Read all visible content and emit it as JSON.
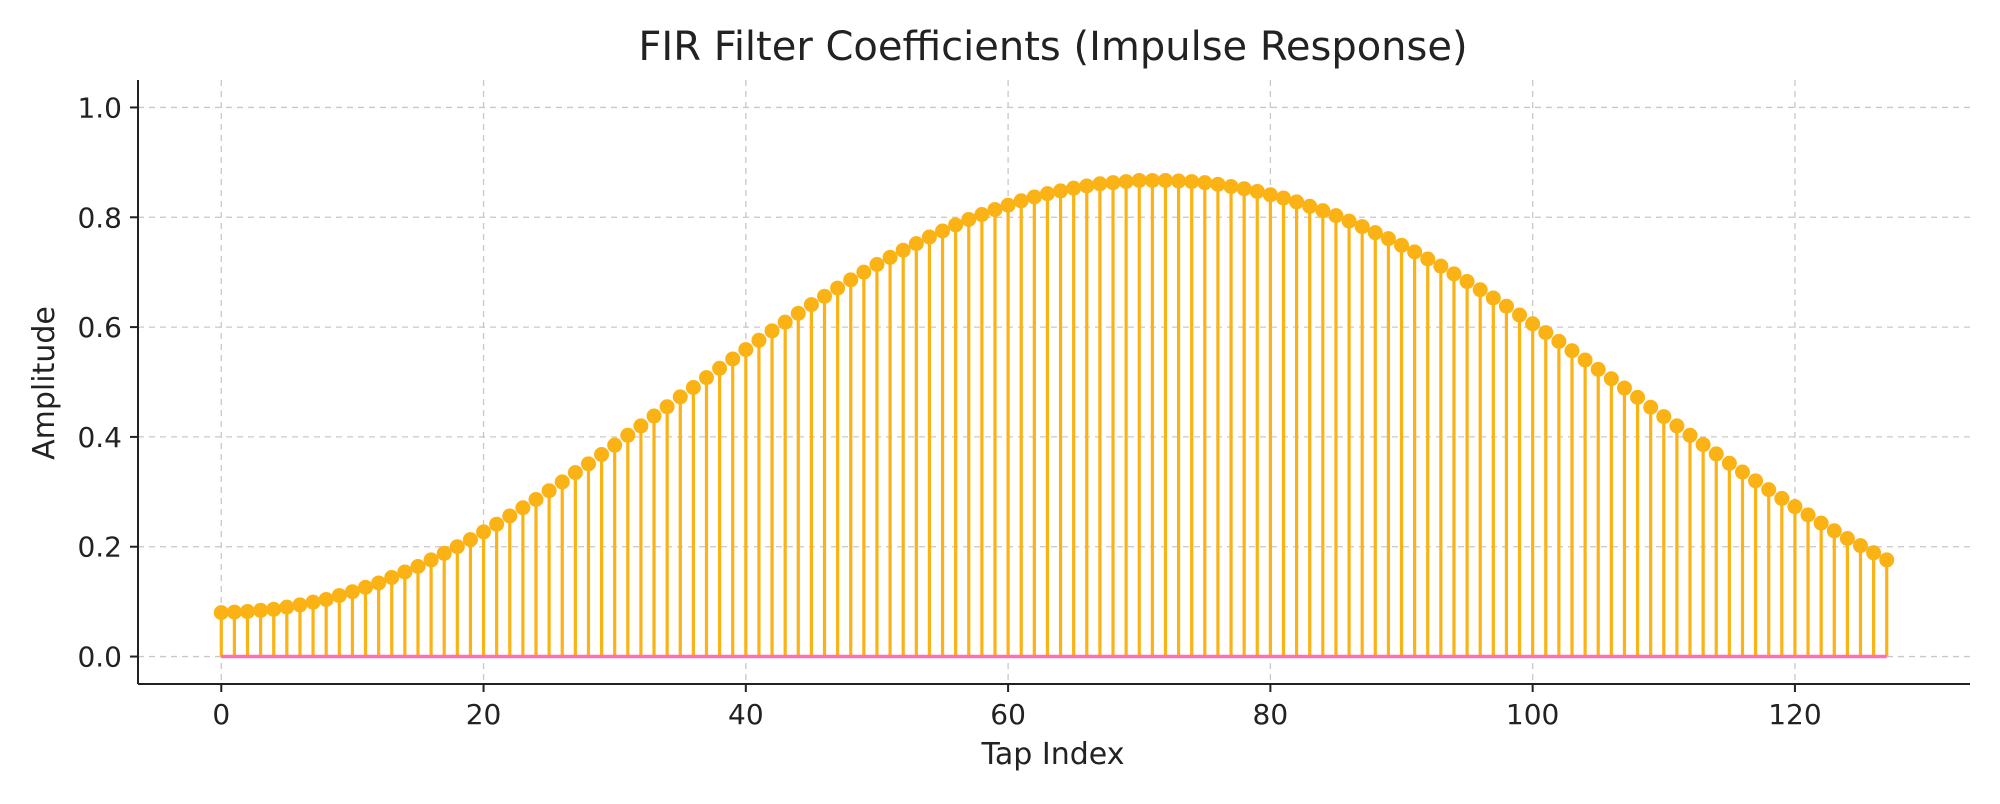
{
  "chart_data": {
    "type": "stem",
    "title": "FIR Filter Coefficients (Impulse Response)",
    "xlabel": "Tap Index",
    "ylabel": "Amplitude",
    "xlim": [
      -6.35,
      133.35
    ],
    "ylim": [
      -0.05,
      1.05
    ],
    "xticks": [
      0,
      20,
      40,
      60,
      80,
      100,
      120
    ],
    "yticks": [
      0.0,
      0.2,
      0.4,
      0.6,
      0.8,
      1.0
    ],
    "xtick_labels": [
      "0",
      "20",
      "40",
      "60",
      "80",
      "100",
      "120"
    ],
    "ytick_labels": [
      "0.0",
      "0.2",
      "0.4",
      "0.6",
      "0.8",
      "1.0"
    ],
    "grid": true,
    "legend": "none",
    "colors": {
      "stem": "#FBB214",
      "marker": "#FBB214",
      "baseline": "#FF6FB5",
      "grid": "#c8c8c8",
      "axis": "#222222"
    },
    "series": [
      {
        "x": [
          0,
          1,
          2,
          3,
          4,
          5,
          6,
          7,
          8,
          9,
          10,
          11,
          12,
          13,
          14,
          15,
          16,
          17,
          18,
          19,
          20,
          21,
          22,
          23,
          24,
          25,
          26,
          27,
          28,
          29,
          30,
          31,
          32,
          33,
          34,
          35,
          36,
          37,
          38,
          39,
          40,
          41,
          42,
          43,
          44,
          45,
          46,
          47,
          48,
          49,
          50,
          51,
          52,
          53,
          54,
          55,
          56,
          57,
          58,
          59,
          60,
          61,
          62,
          63,
          64,
          65,
          66,
          67,
          68,
          69,
          70,
          71,
          72,
          73,
          74,
          75,
          76,
          77,
          78,
          79,
          80,
          81,
          82,
          83,
          84,
          85,
          86,
          87,
          88,
          89,
          90,
          91,
          92,
          93,
          94,
          95,
          96,
          97,
          98,
          99,
          100,
          101,
          102,
          103,
          104,
          105,
          106,
          107,
          108,
          109,
          110,
          111,
          112,
          113,
          114,
          115,
          116,
          117,
          118,
          119,
          120,
          121,
          122,
          123,
          124,
          125,
          126,
          127
        ],
        "values": [
          0.08,
          0.081,
          0.082,
          0.084,
          0.086,
          0.09,
          0.094,
          0.099,
          0.104,
          0.111,
          0.118,
          0.126,
          0.134,
          0.144,
          0.154,
          0.164,
          0.176,
          0.188,
          0.2,
          0.213,
          0.227,
          0.241,
          0.256,
          0.271,
          0.286,
          0.302,
          0.318,
          0.335,
          0.351,
          0.368,
          0.385,
          0.403,
          0.42,
          0.438,
          0.455,
          0.473,
          0.49,
          0.508,
          0.525,
          0.542,
          0.559,
          0.576,
          0.593,
          0.609,
          0.625,
          0.641,
          0.656,
          0.671,
          0.686,
          0.7,
          0.714,
          0.727,
          0.74,
          0.752,
          0.764,
          0.775,
          0.786,
          0.796,
          0.805,
          0.814,
          0.822,
          0.83,
          0.837,
          0.843,
          0.848,
          0.853,
          0.857,
          0.861,
          0.863,
          0.865,
          0.867,
          0.867,
          0.867,
          0.866,
          0.865,
          0.863,
          0.86,
          0.856,
          0.852,
          0.847,
          0.841,
          0.835,
          0.828,
          0.82,
          0.812,
          0.803,
          0.793,
          0.783,
          0.772,
          0.761,
          0.749,
          0.737,
          0.724,
          0.711,
          0.697,
          0.683,
          0.668,
          0.653,
          0.638,
          0.622,
          0.606,
          0.59,
          0.574,
          0.557,
          0.54,
          0.523,
          0.506,
          0.489,
          0.472,
          0.454,
          0.437,
          0.42,
          0.403,
          0.386,
          0.369,
          0.352,
          0.336,
          0.32,
          0.304,
          0.288,
          0.273,
          0.258,
          0.243,
          0.229,
          0.215,
          0.202,
          0.189,
          0.176
        ]
      }
    ]
  }
}
